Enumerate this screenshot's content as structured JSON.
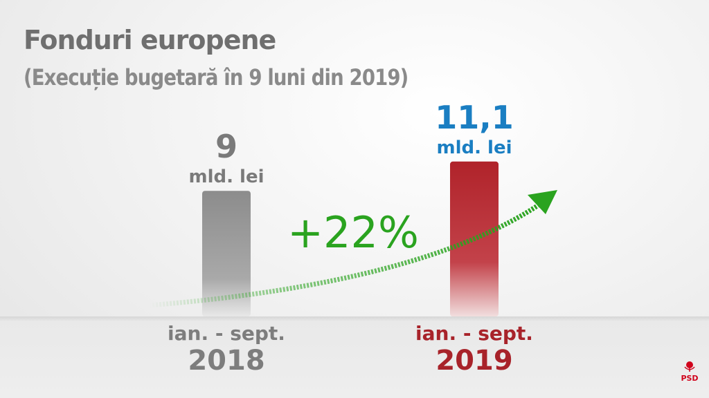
{
  "title": "Fonduri europene",
  "subtitle": "(Execuție bugetară în 9 luni din 2019)",
  "chart_data": {
    "type": "bar",
    "categories": [
      "2018",
      "2019"
    ],
    "period_labels": [
      "ian. - sept.",
      "ian. - sept."
    ],
    "values": [
      9,
      11.1
    ],
    "value_labels": [
      "9",
      "11,1"
    ],
    "unit": "mld. lei",
    "bar_colors": [
      "#8c8c8c",
      "#b0232a"
    ],
    "value_colors": [
      "#7a7a7a",
      "#1a7ec2"
    ],
    "category_colors": [
      "#7d7d7d",
      "#a8232a"
    ],
    "change_label": "+22%",
    "change_color": "#2aa31f"
  },
  "logo": {
    "text": "PSD",
    "color": "#d0021b"
  }
}
